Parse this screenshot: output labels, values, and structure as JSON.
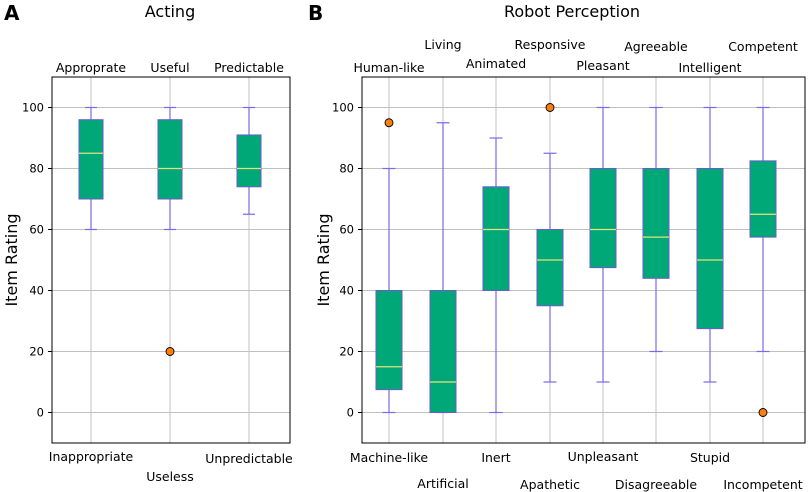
{
  "chart_data": [
    {
      "panel": "A",
      "type": "box",
      "title": "Acting",
      "ylabel": "Item Rating",
      "ylim": [
        -10,
        110
      ],
      "yticks": [
        0,
        20,
        40,
        60,
        80,
        100
      ],
      "grid": true,
      "items": [
        {
          "top": "Approprate",
          "bottom": "Inappropriate",
          "whisker_low": 60,
          "q1": 70,
          "median": 85,
          "q3": 96,
          "whisker_high": 100,
          "outliers": []
        },
        {
          "top": "Useful",
          "bottom": "Useless",
          "whisker_low": 60,
          "q1": 70,
          "median": 80,
          "q3": 96,
          "whisker_high": 100,
          "outliers": [
            20
          ]
        },
        {
          "top": "Predictable",
          "bottom": "Unpredictable",
          "whisker_low": 65,
          "q1": 74,
          "median": 80,
          "q3": 91,
          "whisker_high": 100,
          "outliers": []
        }
      ]
    },
    {
      "panel": "B",
      "type": "box",
      "title": "Robot Perception",
      "ylabel": "Item Rating",
      "ylim": [
        -10,
        110
      ],
      "yticks": [
        0,
        20,
        40,
        60,
        80,
        100
      ],
      "grid": true,
      "items": [
        {
          "top": "Human-like",
          "bottom": "Machine-like",
          "whisker_low": 0,
          "q1": 7.5,
          "median": 15,
          "q3": 40,
          "whisker_high": 80,
          "outliers": [
            95
          ]
        },
        {
          "top": "Living",
          "bottom": "Artificial",
          "whisker_low": 0,
          "q1": 0,
          "median": 10,
          "q3": 40,
          "whisker_high": 95,
          "outliers": []
        },
        {
          "top": "Animated",
          "bottom": "Inert",
          "whisker_low": 0,
          "q1": 40,
          "median": 60,
          "q3": 74,
          "whisker_high": 90,
          "outliers": []
        },
        {
          "top": "Responsive",
          "bottom": "Apathetic",
          "whisker_low": 10,
          "q1": 35,
          "median": 50,
          "q3": 60,
          "whisker_high": 85,
          "outliers": [
            100
          ]
        },
        {
          "top": "Pleasant",
          "bottom": "Unpleasant",
          "whisker_low": 10,
          "q1": 47.5,
          "median": 60,
          "q3": 80,
          "whisker_high": 100,
          "outliers": []
        },
        {
          "top": "Agreeable",
          "bottom": "Disagreeable",
          "whisker_low": 20,
          "q1": 44,
          "median": 57.5,
          "q3": 80,
          "whisker_high": 100,
          "outliers": []
        },
        {
          "top": "Intelligent",
          "bottom": "Stupid",
          "whisker_low": 10,
          "q1": 27.5,
          "median": 50,
          "q3": 80,
          "whisker_high": 100,
          "outliers": []
        },
        {
          "top": "Competent",
          "bottom": "Incompetent",
          "whisker_low": 20,
          "q1": 57.5,
          "median": 65,
          "q3": 82.5,
          "whisker_high": 100,
          "outliers": [
            0
          ]
        }
      ]
    }
  ],
  "colors": {
    "box_fill": "#00a878",
    "box_edge": "#6a5acd",
    "whisker": "#7b68ee",
    "median": "#e6e27a",
    "outlier_fill": "#ff7f0e",
    "grid": "#c0c0c0",
    "axis": "#000000"
  }
}
